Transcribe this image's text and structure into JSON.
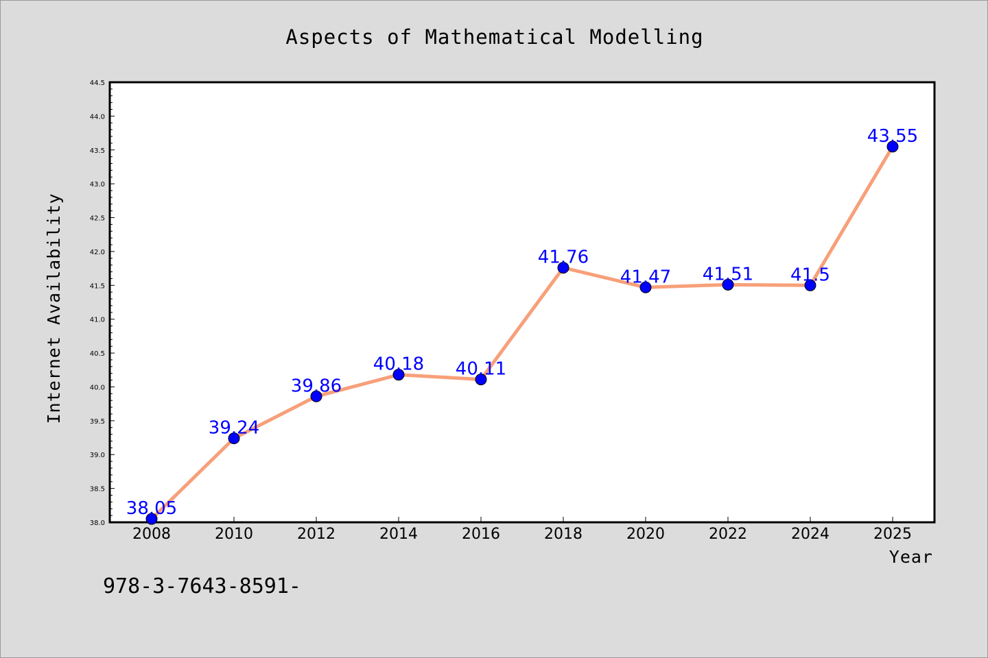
{
  "chart_data": {
    "type": "line",
    "title": "Aspects of Mathematical Modelling",
    "xlabel": "Year",
    "ylabel": "Internet Availability",
    "categories": [
      "2008",
      "2010",
      "2012",
      "2014",
      "2016",
      "2018",
      "2020",
      "2022",
      "2024",
      "2025"
    ],
    "series": [
      {
        "values": [
          38.05,
          39.24,
          39.86,
          40.18,
          40.11,
          41.76,
          41.47,
          41.51,
          41.5,
          43.55
        ],
        "data_labels": [
          "38.05",
          "39.24",
          "39.86",
          "40.18",
          "40.11",
          "41.76",
          "41.47",
          "41.51",
          "41.5",
          "43.55"
        ],
        "line_color": "#f7a07a",
        "marker_color": "#0000ff"
      }
    ],
    "ylim": [
      38.0,
      44.5
    ],
    "yticks": [
      "38.0",
      "38.5",
      "39.0",
      "39.5",
      "40.0",
      "40.5",
      "41.0",
      "41.5",
      "42.0",
      "42.5",
      "43.0",
      "43.5",
      "44.0",
      "44.5"
    ],
    "grid": false,
    "legend": "none",
    "background_color": "#dcdcdc",
    "plot_background_color": "#ffffff"
  },
  "footer": {
    "text": "978-3-7643-8591-"
  }
}
